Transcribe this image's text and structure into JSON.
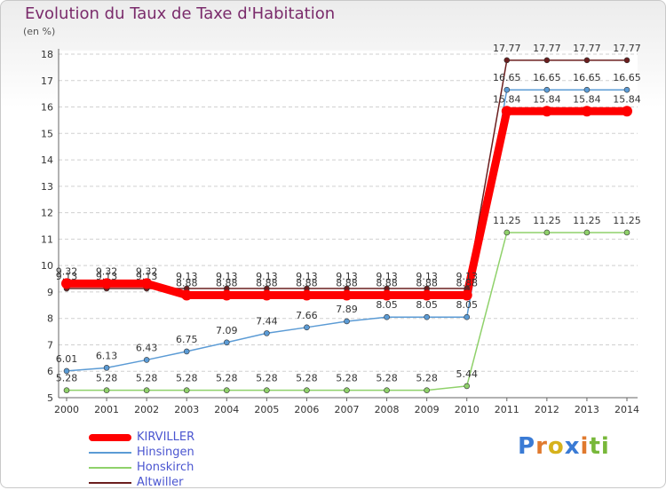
{
  "chart_data": {
    "type": "line",
    "title": "Evolution du Taux de Taxe d'Habitation",
    "ylabel": "(en %)",
    "xlabel": "",
    "categories": [
      "2000",
      "2001",
      "2002",
      "2003",
      "2004",
      "2005",
      "2006",
      "2007",
      "2008",
      "2009",
      "2010",
      "2011",
      "2012",
      "2013",
      "2014"
    ],
    "ylim": [
      5,
      18
    ],
    "yticks": [
      "5",
      "6",
      "7",
      "8",
      "9",
      "10",
      "11",
      "12",
      "13",
      "14",
      "15",
      "16",
      "17",
      "18"
    ],
    "grid": true,
    "legend_position": "bottom-left",
    "series": [
      {
        "name": "Altwiller",
        "color": "#6b1e1e",
        "values": [
          9.13,
          9.13,
          9.13,
          9.13,
          9.13,
          9.13,
          9.13,
          9.13,
          9.13,
          9.13,
          9.13,
          17.77,
          17.77,
          17.77,
          17.77
        ],
        "labels": [
          "9.13",
          "9.13",
          "9.13",
          "9.13",
          "9.13",
          "9.13",
          "9.13",
          "9.13",
          "9.13",
          "9.13",
          "9.13",
          "17.77",
          "17.77",
          "17.77",
          "17.77"
        ]
      },
      {
        "name": "Hinsingen",
        "color": "#5b9bd5",
        "values": [
          6.01,
          6.13,
          6.43,
          6.75,
          7.09,
          7.44,
          7.66,
          7.89,
          8.05,
          8.05,
          8.05,
          16.65,
          16.65,
          16.65,
          16.65
        ],
        "labels": [
          "6.01",
          "6.13",
          "6.43",
          "6.75",
          "7.09",
          "7.44",
          "7.66",
          "7.89",
          "8.05",
          "8.05",
          "8.05",
          "16.65",
          "16.65",
          "16.65",
          "16.65"
        ]
      },
      {
        "name": "Honskirch",
        "color": "#8fd16a",
        "values": [
          5.28,
          5.28,
          5.28,
          5.28,
          5.28,
          5.28,
          5.28,
          5.28,
          5.28,
          5.28,
          5.44,
          11.25,
          11.25,
          11.25,
          11.25
        ],
        "labels": [
          "5.28",
          "5.28",
          "5.28",
          "5.28",
          "5.28",
          "5.28",
          "5.28",
          "5.28",
          "5.28",
          "5.28",
          "5.44",
          "11.25",
          "11.25",
          "11.25",
          "11.25"
        ]
      },
      {
        "name": "KIRVILLER",
        "color": "#ff0000",
        "values": [
          9.32,
          9.32,
          9.32,
          8.88,
          8.88,
          8.88,
          8.88,
          8.88,
          8.88,
          8.88,
          8.88,
          15.84,
          15.84,
          15.84,
          15.84
        ],
        "labels": [
          "9.32",
          "9.32",
          "9.32",
          "8.88",
          "8.88",
          "8.88",
          "8.88",
          "8.88",
          "8.88",
          "8.88",
          "8.88",
          "15.84",
          "15.84",
          "15.84",
          "15.84"
        ]
      }
    ],
    "legend": [
      {
        "name": "KIRVILLER",
        "color": "#ff0000"
      },
      {
        "name": "Hinsingen",
        "color": "#5b9bd5"
      },
      {
        "name": "Honskirch",
        "color": "#8fd16a"
      },
      {
        "name": "Altwiller",
        "color": "#6b1e1e"
      }
    ]
  },
  "logo": {
    "letters": [
      "P",
      "r",
      "o",
      "x",
      "i",
      "ti"
    ]
  }
}
